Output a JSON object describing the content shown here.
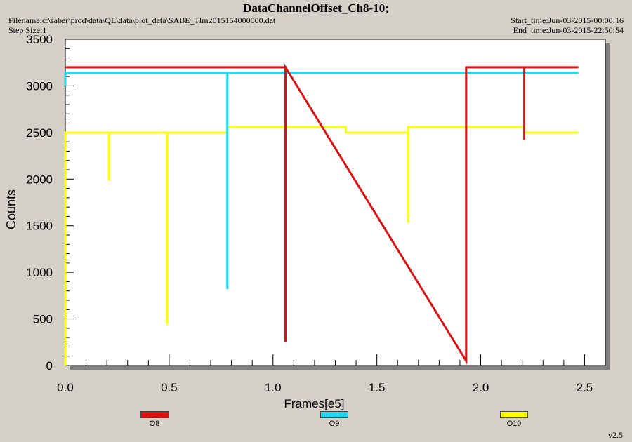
{
  "header": {
    "title": "DataChannelOffset_Ch8-10;",
    "filename": "Filename:c:\\saber\\prod\\data\\QL\\data\\plot_data\\SABE_Tlm2015154000000.dat",
    "step_size": "Step Size:1",
    "start_time": "Start_time:Jun-03-2015-00:00:16",
    "end_time": "End_time:Jun-03-2015-22:50:54"
  },
  "version": "v2.5",
  "chart_data": {
    "type": "line",
    "title": "DataChannelOffset_Ch8-10;",
    "xlabel": "Frames[e5]",
    "ylabel": "Counts",
    "xlim": [
      0,
      2.6
    ],
    "ylim": [
      0,
      3500
    ],
    "x_ticks": [
      "0.0",
      "0.5",
      "1.0",
      "1.5",
      "2.0",
      "2.5"
    ],
    "y_ticks": [
      "0",
      "500",
      "1000",
      "1500",
      "2000",
      "2500",
      "3000",
      "3500"
    ],
    "grid": false,
    "legend_position": "bottom",
    "series": [
      {
        "name": "O8",
        "color": "#dd1111",
        "x": [
          0,
          1.06,
          1.06,
          1.06,
          1.93,
          1.93,
          1.93,
          2.21,
          2.21,
          2.21,
          2.47
        ],
        "y": [
          3200,
          3200,
          250,
          3200,
          50,
          3200,
          3200,
          3200,
          2420,
          3200,
          3200
        ]
      },
      {
        "name": "O9",
        "color": "#22d8f0",
        "x": [
          0,
          0,
          0.78,
          0.78,
          0.78,
          2.47
        ],
        "y": [
          3000,
          3140,
          3140,
          820,
          3140,
          3140
        ]
      },
      {
        "name": "O10",
        "color": "#ffff00",
        "x": [
          0,
          0,
          0.21,
          0.21,
          0.21,
          0.49,
          0.49,
          0.49,
          0.78,
          0.78,
          1.35,
          1.35,
          1.65,
          1.65,
          1.65,
          2.21,
          2.21,
          2.47
        ],
        "y": [
          0,
          2500,
          2500,
          1980,
          2500,
          2500,
          440,
          2500,
          2500,
          2560,
          2560,
          2500,
          2500,
          1530,
          2560,
          2560,
          2500,
          2500
        ]
      }
    ]
  }
}
